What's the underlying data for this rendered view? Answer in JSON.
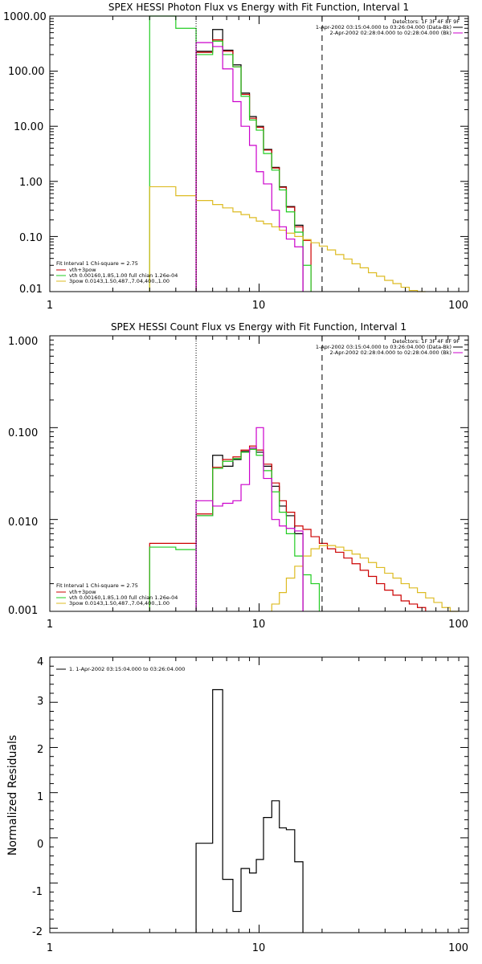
{
  "chart_data": [
    {
      "type": "line",
      "title": "SPEX HESSI Photon Flux vs Energy with Fit Function, Interval 1",
      "xscale": "log",
      "yscale": "log",
      "xlim": [
        1,
        100
      ],
      "ylim": [
        0.01,
        1000
      ],
      "grid": false,
      "x_tick_labels": [
        "1",
        "10",
        "100"
      ],
      "y_tick_labels": [
        "0.01",
        "0.10",
        "1.00",
        "10.00",
        "100.00",
        "1000.00"
      ],
      "ylabel": "",
      "info_lines": [
        "Detectors: 1F 3F 4F 8F 9F",
        "1-Apr-2002 03:15:04.000 to 03:26:04.000 (Data-Bk)",
        "2-Apr-2002 02:28:04.000 to 02:28:04.000 (Bk)"
      ],
      "fit_lines": [
        "Fit Interval 1   Chi-square = 2.75",
        "vth+3pow",
        "vth 0.00160,1.85,1.00  full chian 1.26e-04",
        "3pow 0.0143,1.50,487.,7.04,400.,1.00"
      ],
      "vlines": [
        {
          "x": 5.0,
          "style": "dotted"
        },
        {
          "x": 20.0,
          "style": "dashed"
        }
      ],
      "x_edges": [
        3,
        4,
        5,
        6,
        6.7,
        7.5,
        8.2,
        9.0,
        9.7,
        10.5,
        11.5,
        12.5,
        13.5,
        14.8,
        16.2,
        17.7,
        19.4,
        21.2,
        23.2,
        25.4,
        27.8,
        30.4,
        33.3,
        36.4,
        39.8,
        43.6,
        47.7,
        52.2,
        57.1,
        62.5
      ],
      "series": [
        {
          "name": "Data-Bk",
          "color": "#000000",
          "x_start": 5,
          "x_end": 19.4,
          "values": [
            230,
            570,
            240,
            130,
            40,
            15,
            10,
            3.8,
            1.8,
            0.8,
            0.35,
            0.16
          ]
        },
        {
          "name": "vth+3pow",
          "color": "#cc0000",
          "x_start": 5,
          "x_end": 21.2,
          "values": [
            220,
            370,
            230,
            120,
            38,
            14,
            9.6,
            3.7,
            1.75,
            0.78,
            0.34,
            0.15,
            0.085
          ]
        },
        {
          "name": "vth",
          "color": "#22cc22",
          "x_start": 3,
          "x_end": 21.2,
          "values": [
            1000,
            600,
            200,
            350,
            200,
            120,
            35,
            13,
            8.5,
            3.2,
            1.6,
            0.7,
            0.28,
            0.12,
            0.03
          ]
        },
        {
          "name": "3pow",
          "color": "#ddbb22",
          "x_start": 3,
          "x_end": 62.5,
          "values": [
            0.8,
            0.55,
            0.45,
            0.38,
            0.33,
            0.28,
            0.25,
            0.22,
            0.19,
            0.17,
            0.15,
            0.13,
            0.115,
            0.1,
            0.088,
            0.077,
            0.067,
            0.057,
            0.047,
            0.039,
            0.032,
            0.027,
            0.022,
            0.019,
            0.016,
            0.014,
            0.012,
            0.0105,
            0.0095
          ]
        },
        {
          "name": "Bk",
          "color": "#cc00cc",
          "x_start": 5,
          "x_end": 19.4,
          "values": [
            330,
            280,
            110,
            28,
            10,
            4.5,
            1.5,
            0.9,
            0.3,
            0.15,
            0.09,
            0.065
          ]
        }
      ]
    },
    {
      "type": "line",
      "title": "SPEX HESSI Count Flux vs Energy with Fit Function, Interval 1",
      "xscale": "log",
      "yscale": "log",
      "xlim": [
        1,
        100
      ],
      "ylim": [
        0.001,
        1
      ],
      "grid": false,
      "x_tick_labels": [
        "1",
        "10",
        "100"
      ],
      "y_tick_labels": [
        "0.001",
        "0.010",
        "0.100",
        "1.000"
      ],
      "ylabel": "",
      "info_lines": [
        "Detectors: 1F 3F 4F 8F 9F",
        "1-Apr-2002 03:15:04.000 to 03:26:04.000 (Data-Bk)",
        "2-Apr-2002 02:28:04.000 to 02:28:04.000 (Bk)"
      ],
      "fit_lines": [
        "Fit Interval 1   Chi-square = 2.75",
        "vth+3pow",
        "vth 0.00160,1.85,1.00  full chian 1.26e-04",
        "3pow 0.0143,1.50,487.,7.04,400.,1.00"
      ],
      "vlines": [
        {
          "x": 5.0,
          "style": "dotted"
        },
        {
          "x": 20.0,
          "style": "dashed"
        }
      ],
      "x_edges": [
        3,
        4,
        5,
        6,
        6.7,
        7.5,
        8.2,
        9.0,
        9.7,
        10.5,
        11.5,
        12.5,
        13.5,
        14.8,
        16.2,
        17.7,
        19.4,
        21.2,
        23.2,
        25.4,
        27.8,
        30.4,
        33.3,
        36.4,
        39.8,
        43.6,
        47.7,
        52.2,
        57.1,
        62.5,
        68.4,
        74.8,
        81.9,
        89.6,
        98.1
      ],
      "series": [
        {
          "name": "Data-Bk",
          "color": "#000000",
          "x_start": 5,
          "x_end": 19.4,
          "values": [
            0.011,
            0.05,
            0.038,
            0.045,
            0.055,
            0.06,
            0.054,
            0.038,
            0.023,
            0.014,
            0.011,
            0.007
          ]
        },
        {
          "name": "vth+3pow",
          "color": "#cc0000",
          "x_start": 3,
          "x_end": 62.5,
          "values": [
            0.0055,
            0.0055,
            0.0115,
            0.037,
            0.045,
            0.048,
            0.057,
            0.063,
            0.057,
            0.04,
            0.025,
            0.016,
            0.012,
            0.0085,
            0.0078,
            0.0065,
            0.0055,
            0.0048,
            0.0044,
            0.0038,
            0.0033,
            0.0028,
            0.0024,
            0.002,
            0.0017,
            0.0015,
            0.0013,
            0.0012,
            0.0011
          ]
        },
        {
          "name": "vth",
          "color": "#22cc22",
          "x_start": 3,
          "x_end": 19.4,
          "values": [
            0.005,
            0.0047,
            0.011,
            0.036,
            0.043,
            0.046,
            0.054,
            0.058,
            0.05,
            0.034,
            0.02,
            0.012,
            0.007,
            0.004,
            0.0025,
            0.002
          ]
        },
        {
          "name": "3pow",
          "color": "#ddbb22",
          "x_start": 11.5,
          "x_end": 98.1,
          "values": [
            0.0012,
            0.0016,
            0.0023,
            0.0031,
            0.004,
            0.0048,
            0.0052,
            0.0052,
            0.005,
            0.0046,
            0.0042,
            0.0038,
            0.0034,
            0.003,
            0.0026,
            0.0023,
            0.002,
            0.0018,
            0.0016,
            0.0014,
            0.00125,
            0.0011,
            0.001
          ]
        },
        {
          "name": "Bk",
          "color": "#cc00cc",
          "x_start": 5,
          "x_end": 19.4,
          "values": [
            0.016,
            0.014,
            0.015,
            0.016,
            0.024,
            0.06,
            0.1,
            0.028,
            0.01,
            0.0085,
            0.008,
            0.0075
          ]
        }
      ]
    },
    {
      "type": "line",
      "title": "",
      "xscale": "log",
      "yscale": "linear",
      "xlim": [
        1,
        100
      ],
      "ylim": [
        -2.1,
        4
      ],
      "grid": false,
      "x_tick_labels": [
        "1",
        "10",
        "100"
      ],
      "y_tick_labels": [
        "-2",
        "-1",
        "0",
        "1",
        "2",
        "3",
        "4"
      ],
      "ylabel": "Normalized Residuals",
      "legend": "1.  1-Apr-2002 03:15:04.000 to 03:26:04.000",
      "x_edges": [
        5,
        6,
        6.7,
        7.5,
        8.2,
        9.0,
        9.7,
        10.5,
        11.5,
        12.5,
        13.5,
        14.8,
        16.2,
        17.7,
        19.4
      ],
      "series": [
        {
          "name": "1.  1-Apr-2002 03:15:04.000 to 03:26:04.000",
          "color": "#000000",
          "values": [
            -0.12,
            3.28,
            -0.92,
            -1.63,
            -0.68,
            -0.78,
            -0.48,
            0.45,
            0.82,
            0.22,
            0.18,
            -0.53
          ]
        }
      ]
    }
  ]
}
